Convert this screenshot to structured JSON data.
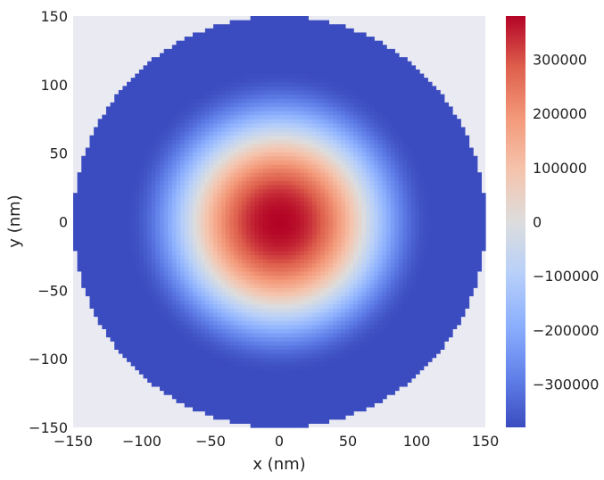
{
  "chart_data": {
    "type": "heatmap",
    "title": "",
    "xlabel": "x (nm)",
    "ylabel": "y (nm)",
    "xlim": [
      -150,
      150
    ],
    "ylim": [
      -150,
      150
    ],
    "x_ticks": [
      -150,
      -100,
      -50,
      0,
      50,
      100,
      150
    ],
    "y_ticks": [
      -150,
      -100,
      -50,
      0,
      50,
      100,
      150
    ],
    "x_tick_labels": [
      "−150",
      "−100",
      "−50",
      "0",
      "50",
      "100",
      "150"
    ],
    "y_tick_labels": [
      "−150",
      "−100",
      "−50",
      "0",
      "50",
      "100",
      "150"
    ],
    "field": {
      "shape": "disk",
      "center": [
        0,
        0
      ],
      "disk_radius": 150,
      "grid_resolution": 100,
      "center_value": 380000,
      "edge_value": -380000,
      "zero_crossing_radius": 80,
      "profile": "cosine falloff from center to edge, flat minimum beyond ~110 nm"
    },
    "colorbar": {
      "colormap": "coolwarm",
      "vmin": -380000,
      "vmax": 380000,
      "ticks": [
        300000,
        200000,
        100000,
        0,
        -100000,
        -200000,
        -300000
      ],
      "tick_labels": [
        "300000",
        "200000",
        "100000",
        "0",
        "−100000",
        "−200000",
        "−300000"
      ]
    },
    "grid": false,
    "background": "#eaeaf2"
  }
}
